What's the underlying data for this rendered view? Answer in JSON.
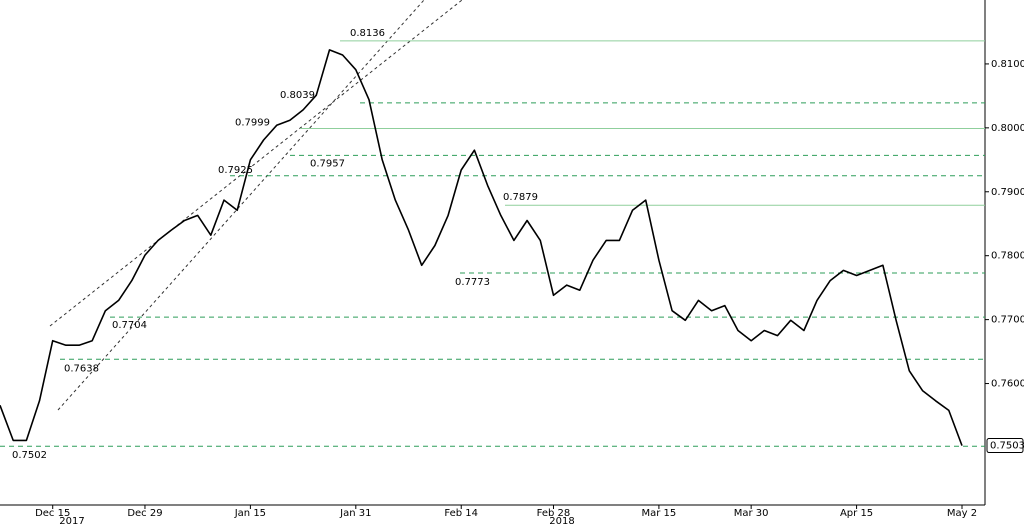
{
  "chart_data": {
    "type": "line",
    "categories": [
      null,
      null,
      null,
      null,
      "Dec 15",
      null,
      null,
      null,
      null,
      null,
      null,
      "Dec 29",
      null,
      null,
      null,
      null,
      null,
      null,
      null,
      "Jan 15",
      null,
      null,
      null,
      null,
      null,
      null,
      null,
      "Jan 31",
      null,
      null,
      null,
      null,
      null,
      null,
      null,
      "Feb 14",
      null,
      null,
      null,
      null,
      null,
      null,
      "Feb 28",
      null,
      null,
      null,
      null,
      null,
      null,
      null,
      "Mar 15",
      null,
      null,
      null,
      null,
      null,
      null,
      "Mar 30",
      null,
      null,
      null,
      null,
      null,
      null,
      null,
      "Apr 15",
      null,
      null,
      null,
      null,
      null,
      null,
      null,
      "May 2"
    ],
    "year_labels": [
      "2017",
      "2018"
    ],
    "values": [
      0.7566,
      0.7511,
      0.7511,
      0.7573,
      0.7667,
      0.766,
      0.766,
      0.7667,
      0.7714,
      0.773,
      0.7761,
      0.7801,
      0.7824,
      0.784,
      0.7855,
      0.7863,
      0.7832,
      0.7887,
      0.7871,
      0.795,
      0.7981,
      0.8004,
      0.8012,
      0.8028,
      0.8051,
      0.8122,
      0.8114,
      0.8091,
      0.8044,
      0.795,
      0.7887,
      0.784,
      0.7785,
      0.7816,
      0.7863,
      0.7934,
      0.7965,
      0.791,
      0.7863,
      0.7824,
      0.7855,
      0.7824,
      0.7738,
      0.7754,
      0.7746,
      0.7793,
      0.7824,
      0.7824,
      0.7871,
      0.7887,
      0.7793,
      0.7714,
      0.7699,
      0.773,
      0.7714,
      0.7722,
      0.7683,
      0.7667,
      0.7683,
      0.7675,
      0.7699,
      0.7683,
      0.773,
      0.7761,
      0.7777,
      0.7769,
      0.7777,
      0.7785,
      0.7699,
      0.762,
      0.7589,
      0.7573,
      0.7558,
      0.7503
    ],
    "color": "#000000",
    "last_value": 0.7503,
    "levels": [
      {
        "value": 0.8136,
        "style": "solid"
      },
      {
        "value": 0.8039,
        "style": "dashed"
      },
      {
        "value": 0.7999,
        "style": "solid"
      },
      {
        "value": 0.7957,
        "style": "dashed"
      },
      {
        "value": 0.7925,
        "style": "dashed"
      },
      {
        "value": 0.7879,
        "style": "solid"
      },
      {
        "value": 0.7773,
        "style": "dashed"
      },
      {
        "value": 0.7704,
        "style": "dashed"
      },
      {
        "value": 0.7638,
        "style": "dashed"
      },
      {
        "value": 0.7502,
        "style": "dashed"
      }
    ],
    "ylim": [
      0.741,
      0.82
    ],
    "yticks": [
      {
        "value": 0.76,
        "label": "0.7600"
      },
      {
        "value": 0.77,
        "label": "0.7700"
      },
      {
        "value": 0.78,
        "label": "0.7800"
      },
      {
        "value": 0.79,
        "label": "0.7900"
      },
      {
        "value": 0.8,
        "label": "0.8000"
      },
      {
        "value": 0.81,
        "label": "0.8100"
      }
    ]
  }
}
